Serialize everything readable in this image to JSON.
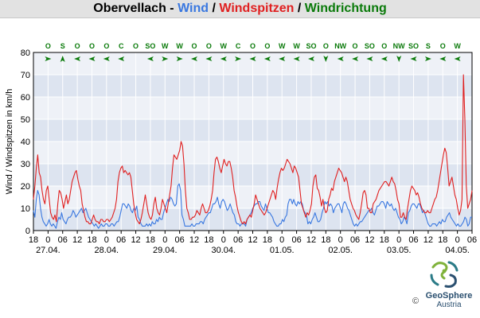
{
  "title": {
    "station": "Obervellach",
    "sep": " - ",
    "wind": "Wind",
    "slash1": " / ",
    "gusts": "Windspitzen",
    "slash2": " / ",
    "direction": "Windrichtung"
  },
  "colors": {
    "wind": "#3a78e0",
    "gusts": "#e02020",
    "direction": "#0a7a0a",
    "band_dark": "#dde4f0",
    "band_light": "#eef1f7",
    "grid": "#ffffff",
    "frame": "#000000"
  },
  "chart_data": {
    "type": "line",
    "ylabel": "Wind / Windspitzen in km/h",
    "ylim": [
      0,
      80
    ],
    "yticks": [
      0,
      10,
      20,
      30,
      40,
      50,
      60,
      70,
      80
    ],
    "x_start_hour": 18,
    "x_range_hours": [
      0,
      180
    ],
    "hour_ticks": [
      "18",
      "0",
      "06",
      "12",
      "18",
      "0",
      "06",
      "12",
      "18",
      "0",
      "06",
      "12",
      "18",
      "0",
      "06",
      "12",
      "18",
      "0",
      "06",
      "12",
      "18",
      "0",
      "06",
      "12",
      "18",
      "0",
      "06",
      "12",
      "18",
      "0",
      "06"
    ],
    "date_labels": [
      "27.04.",
      "28.04.",
      "29.04.",
      "30.04.",
      "01.05.",
      "02.05.",
      "03.05.",
      "04.05."
    ],
    "series": [
      {
        "name": "Wind",
        "values": [
          9,
          6,
          14,
          18,
          16,
          10,
          6,
          4,
          3,
          2,
          3,
          5,
          3,
          2,
          3,
          2,
          1,
          4,
          6,
          5,
          8,
          5,
          4,
          3,
          5,
          6,
          6,
          7,
          9,
          8,
          6,
          7,
          8,
          9,
          10,
          8,
          9,
          10,
          8,
          6,
          5,
          4,
          3,
          2,
          3,
          2,
          1,
          2,
          3,
          2,
          2,
          3,
          3,
          2,
          2,
          3,
          3,
          2,
          3,
          4,
          4,
          6,
          9,
          12,
          12,
          11,
          10,
          12,
          11,
          9,
          8,
          10,
          9,
          11,
          6,
          5,
          3,
          2,
          2,
          2,
          3,
          2,
          3,
          2,
          4,
          3,
          3,
          5,
          4,
          6,
          5,
          5,
          8,
          10,
          12,
          14,
          13,
          15,
          14,
          12,
          11,
          12,
          20,
          21,
          18,
          7,
          5,
          2,
          2,
          2,
          2,
          2,
          3,
          2,
          2,
          3,
          3,
          3,
          4,
          4,
          3,
          5,
          6,
          7,
          8,
          8,
          10,
          12,
          12,
          13,
          15,
          12,
          10,
          13,
          14,
          13,
          11,
          9,
          10,
          12,
          10,
          8,
          7,
          4,
          3,
          3,
          2,
          3,
          3,
          3,
          2,
          5,
          6,
          7,
          8,
          10,
          11,
          12,
          12,
          13,
          13,
          11,
          10,
          9,
          12,
          10,
          8,
          8,
          7,
          6,
          4,
          3,
          2,
          2,
          3,
          3,
          5,
          4,
          6,
          7,
          12,
          14,
          14,
          12,
          14,
          12,
          11,
          13,
          12,
          13,
          12,
          9,
          8,
          7,
          3,
          4,
          3,
          5,
          6,
          8,
          6,
          4,
          4,
          5,
          8,
          10,
          13,
          12,
          13,
          11,
          12,
          11,
          8,
          10,
          11,
          12,
          12,
          10,
          8,
          12,
          13,
          12,
          10,
          9,
          7,
          5,
          3,
          2,
          3,
          2,
          3,
          4,
          4,
          5,
          6,
          7,
          8,
          9,
          9,
          10,
          8,
          7,
          9,
          11,
          11,
          12,
          13,
          13,
          12,
          10,
          13,
          12,
          11,
          12,
          10,
          9,
          10,
          8,
          6,
          5,
          3,
          4,
          6,
          5,
          3,
          8,
          9,
          11,
          12,
          12,
          11,
          10,
          12,
          12,
          10,
          8,
          9,
          7,
          5,
          3,
          2,
          2,
          3,
          3,
          3,
          2,
          3,
          4,
          3,
          5,
          4,
          4,
          6,
          7,
          8,
          6,
          5,
          4,
          3,
          2,
          3,
          2,
          2,
          3,
          4,
          6,
          5,
          2,
          3,
          6,
          6
        ]
      },
      {
        "name": "Windspitzen",
        "values": [
          14,
          20,
          28,
          34,
          26,
          24,
          18,
          14,
          12,
          18,
          20,
          14,
          8,
          6,
          5,
          7,
          4,
          12,
          18,
          17,
          14,
          10,
          13,
          16,
          12,
          14,
          18,
          22,
          24,
          26,
          27,
          23,
          20,
          18,
          12,
          9,
          6,
          4,
          4,
          3,
          3,
          5,
          7,
          5,
          4,
          4,
          3,
          5,
          5,
          4,
          4,
          5,
          5,
          4,
          5,
          6,
          8,
          10,
          14,
          22,
          26,
          28,
          29,
          26,
          27,
          26,
          25,
          26,
          24,
          18,
          12,
          8,
          5,
          4,
          3,
          5,
          8,
          12,
          16,
          12,
          8,
          6,
          5,
          7,
          12,
          15,
          10,
          8,
          7,
          10,
          14,
          12,
          10,
          8,
          12,
          16,
          20,
          28,
          34,
          33,
          32,
          34,
          36,
          40,
          38,
          30,
          18,
          10,
          8,
          5,
          5,
          6,
          6,
          7,
          9,
          8,
          7,
          10,
          12,
          10,
          8,
          8,
          9,
          11,
          14,
          18,
          26,
          32,
          33,
          31,
          28,
          26,
          29,
          32,
          30,
          29,
          31,
          31,
          28,
          24,
          18,
          15,
          11,
          8,
          6,
          4,
          3,
          4,
          3,
          5,
          6,
          7,
          6,
          9,
          12,
          16,
          14,
          12,
          10,
          9,
          8,
          7,
          8,
          10,
          12,
          14,
          16,
          18,
          17,
          14,
          19,
          23,
          26,
          28,
          27,
          28,
          30,
          32,
          31,
          30,
          28,
          26,
          29,
          28,
          26,
          24,
          18,
          12,
          10,
          8,
          6,
          8,
          7,
          9,
          12,
          20,
          24,
          25,
          19,
          18,
          15,
          11,
          14,
          10,
          8,
          9,
          14,
          16,
          19,
          18,
          22,
          24,
          26,
          28,
          27,
          26,
          24,
          22,
          24,
          22,
          18,
          14,
          12,
          10,
          9,
          7,
          6,
          5,
          8,
          12,
          17,
          18,
          16,
          10,
          10,
          8,
          8,
          12,
          13,
          14,
          16,
          18,
          19,
          20,
          21,
          22,
          22,
          21,
          20,
          22,
          24,
          22,
          21,
          18,
          14,
          12,
          6,
          6,
          8,
          6,
          5,
          10,
          14,
          18,
          20,
          19,
          18,
          16,
          17,
          15,
          12,
          10,
          9,
          8,
          8,
          9,
          8,
          8,
          10,
          12,
          14,
          15,
          18,
          22,
          26,
          30,
          34,
          37,
          35,
          28,
          20,
          22,
          24,
          20,
          16,
          14,
          10,
          7,
          9,
          14,
          70,
          50,
          20,
          10,
          12,
          14,
          18
        ]
      }
    ],
    "direction_labels": [
      "O",
      "S",
      "O",
      "O",
      "O",
      "C",
      "O",
      "SO",
      "W",
      "W",
      "O",
      "O",
      "W",
      "C",
      "O",
      "O",
      "W",
      "W",
      "SO",
      "O",
      "NW",
      "O",
      "SO",
      "O",
      "NW",
      "SO",
      "S",
      "O",
      "W"
    ],
    "direction_arrows": [
      ">",
      "^",
      "<",
      "<",
      "<",
      "<",
      "",
      "<",
      ">",
      ">",
      "<",
      "<",
      "<",
      ">",
      "<",
      "<",
      "<",
      "<",
      "<",
      "v",
      "<",
      "<",
      "<",
      "<",
      "v",
      "<",
      ">",
      "<",
      "<"
    ]
  },
  "logo": {
    "brand": "GeoSphere",
    "country": "Austria",
    "copyright": "©"
  }
}
